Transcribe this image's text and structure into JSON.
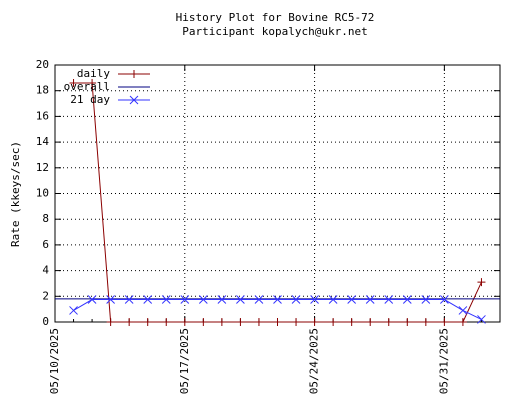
{
  "chart_data": {
    "type": "line",
    "title": "History Plot for Bovine RC5-72",
    "subtitle": "Participant kopalych@ukr.net",
    "y_label": "Rate (kkeys/sec)",
    "x": [
      "05/11/2025",
      "05/12/2025",
      "05/13/2025",
      "05/14/2025",
      "05/15/2025",
      "05/16/2025",
      "05/17/2025",
      "05/18/2025",
      "05/19/2025",
      "05/20/2025",
      "05/21/2025",
      "05/22/2025",
      "05/23/2025",
      "05/24/2025",
      "05/25/2025",
      "05/26/2025",
      "05/27/2025",
      "05/28/2025",
      "05/29/2025",
      "05/30/2025",
      "05/31/2025",
      "06/01/2025",
      "06/02/2025"
    ],
    "xlim": [
      "05/10/2025",
      "06/03/2025"
    ],
    "xticks": [
      "05/10/2025",
      "05/17/2025",
      "05/24/2025",
      "05/31/2025"
    ],
    "ylim": [
      0,
      20
    ],
    "yticks": [
      0,
      2,
      4,
      6,
      8,
      10,
      12,
      14,
      16,
      18,
      20
    ],
    "grid": true,
    "legend": "top-left",
    "series": [
      {
        "name": "daily",
        "color": "#8b0000",
        "marker": "plus",
        "values": [
          18.6,
          18.6,
          0,
          0,
          0,
          0,
          0,
          0,
          0,
          0,
          0,
          0,
          0,
          0,
          0,
          0,
          0,
          0,
          0,
          0,
          0,
          0,
          3.1
        ]
      },
      {
        "name": "overall",
        "color": "#000080",
        "value": 1.8
      },
      {
        "name": "21 day",
        "color": "#3333ff",
        "marker": "cross",
        "values": [
          0.9,
          1.75,
          1.75,
          1.75,
          1.75,
          1.75,
          1.75,
          1.75,
          1.75,
          1.75,
          1.75,
          1.75,
          1.75,
          1.75,
          1.75,
          1.75,
          1.75,
          1.75,
          1.75,
          1.75,
          1.75,
          0.9,
          0.2
        ]
      }
    ]
  }
}
